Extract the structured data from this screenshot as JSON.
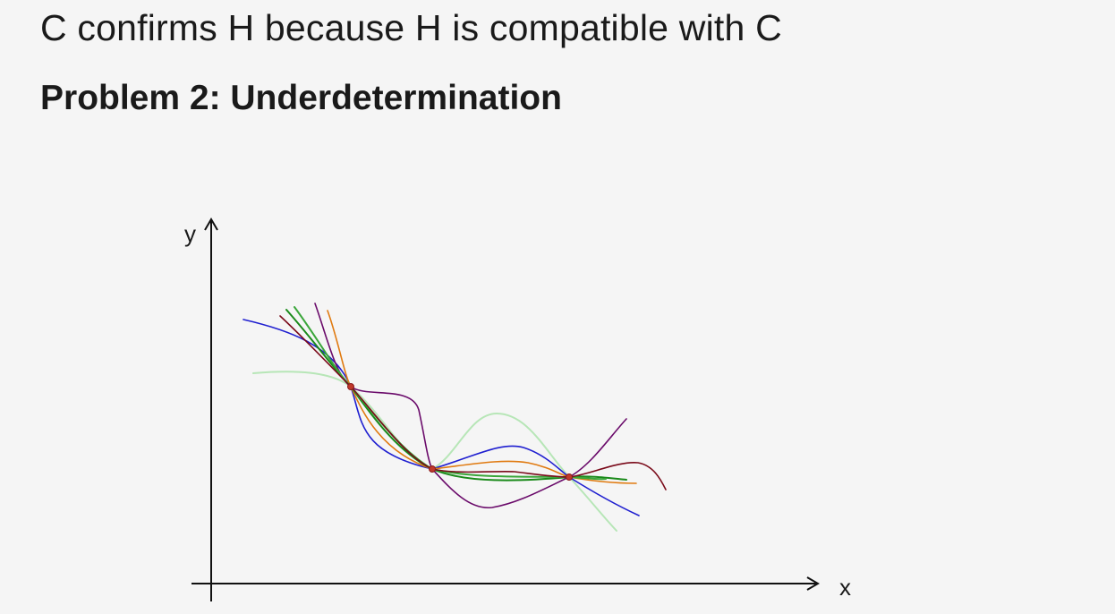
{
  "slide": {
    "statement": "C confirms H because H is compatible with C",
    "heading": "Problem 2: Underdetermination"
  },
  "diagram": {
    "x_axis_label": "x",
    "y_axis_label": "y",
    "data_points_count": 3,
    "curve_colors": [
      "#1f1fd0",
      "#b7e6b7",
      "#6a0a6a",
      "#e07a10",
      "#1a8a1a",
      "#3aa63a",
      "#7a0a1a"
    ],
    "point_color": "#c0392b"
  }
}
